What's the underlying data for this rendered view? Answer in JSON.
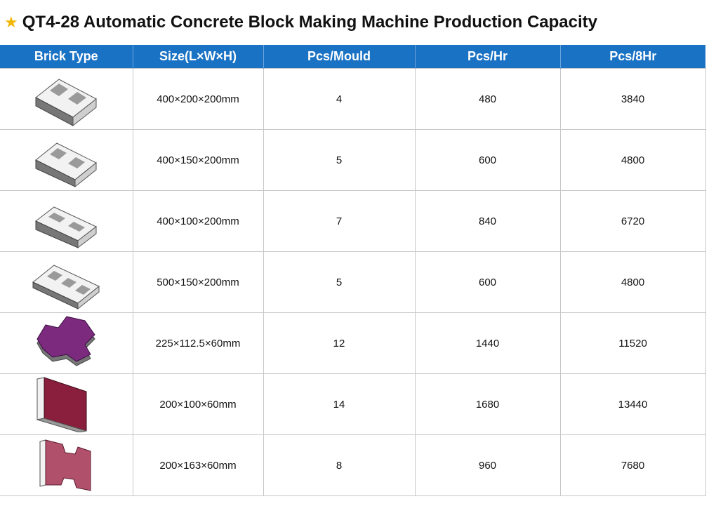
{
  "title": {
    "star": "★",
    "text": "QT4-28 Automatic Concrete Block Making Machine Production Capacity"
  },
  "table": {
    "headers": [
      "Brick Type",
      "Size(L×W×H)",
      "Pcs/Mould",
      "Pcs/Hr",
      "Pcs/8Hr"
    ],
    "rows": [
      {
        "icon": "hollow-block-2-hole-icon",
        "size": "400×200×200mm",
        "pcs_mould": "4",
        "pcs_hr": "480",
        "pcs_8hr": "3840"
      },
      {
        "icon": "hollow-block-2-hole-icon",
        "size": "400×150×200mm",
        "pcs_mould": "5",
        "pcs_hr": "600",
        "pcs_8hr": "4800"
      },
      {
        "icon": "hollow-block-slot-icon",
        "size": "400×100×200mm",
        "pcs_mould": "7",
        "pcs_hr": "840",
        "pcs_8hr": "6720"
      },
      {
        "icon": "hollow-block-3-hole-icon",
        "size": "500×150×200mm",
        "pcs_mould": "5",
        "pcs_hr": "600",
        "pcs_8hr": "4800"
      },
      {
        "icon": "zigzag-paver-icon",
        "size": "225×112.5×60mm",
        "pcs_mould": "12",
        "pcs_hr": "1440",
        "pcs_8hr": "11520"
      },
      {
        "icon": "rectangular-paver-icon",
        "size": "200×100×60mm",
        "pcs_mould": "14",
        "pcs_hr": "1680",
        "pcs_8hr": "13440"
      },
      {
        "icon": "i-shape-paver-icon",
        "size": "200×163×60mm",
        "pcs_mould": "8",
        "pcs_hr": "960",
        "pcs_8hr": "7680"
      }
    ]
  },
  "colors": {
    "header_bg": "#1a72c4",
    "star": "#f2b705",
    "paver_purple": "#7b2a7e",
    "paver_maroon": "#8a1f3d",
    "paver_rose": "#b0506a"
  }
}
